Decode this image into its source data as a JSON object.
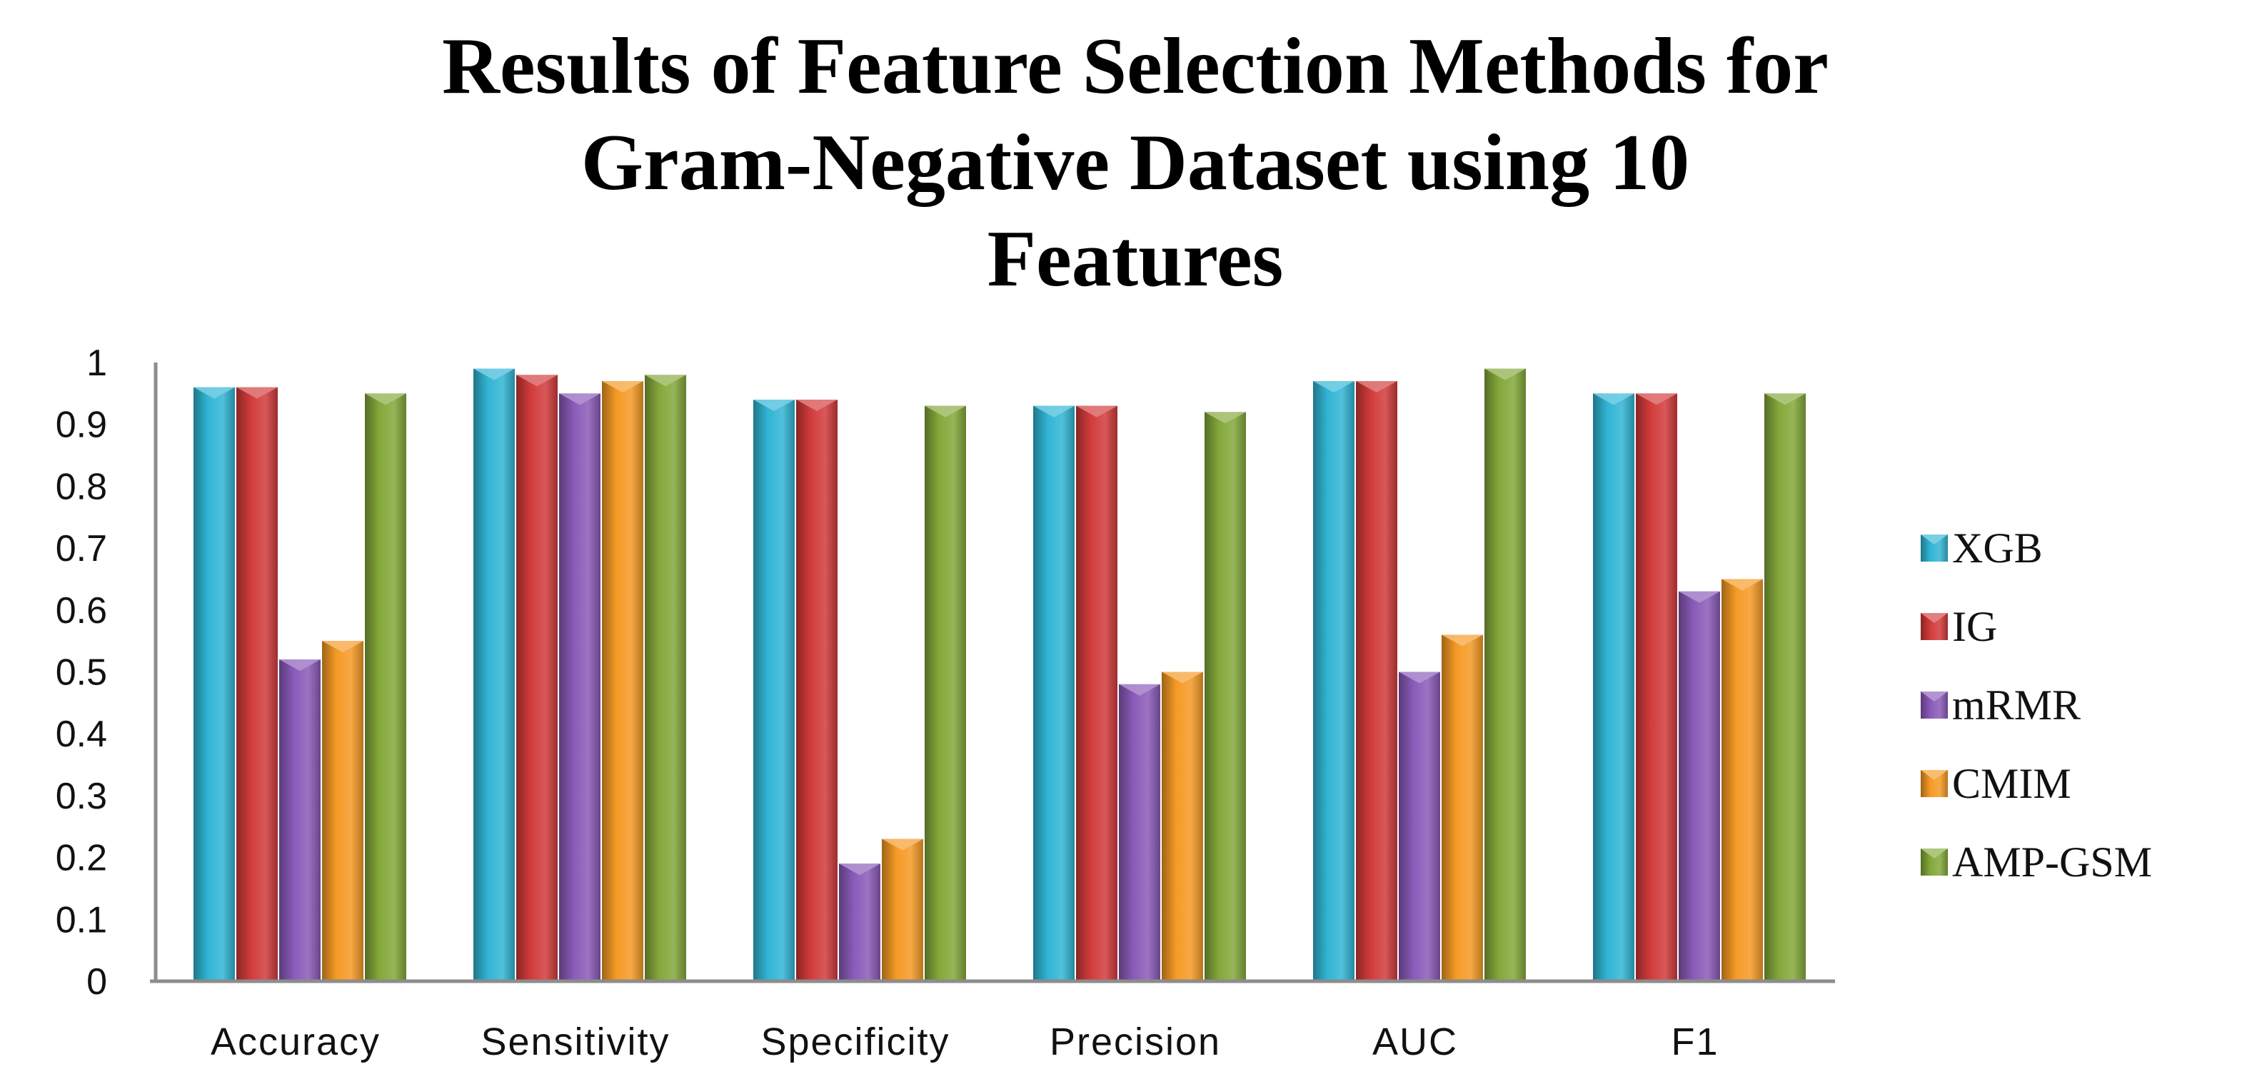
{
  "chart_data": {
    "type": "bar",
    "title_lines": [
      "Results of Feature Selection Methods for",
      "Gram-Negative Dataset using 10",
      "Features"
    ],
    "categories": [
      "Accuracy",
      "Sensitivity",
      "Specificity",
      "Precision",
      "AUC",
      "F1"
    ],
    "series": [
      {
        "name": "XGB",
        "color": "#31b5d5",
        "values": [
          0.96,
          0.99,
          0.94,
          0.93,
          0.97,
          0.95
        ]
      },
      {
        "name": "IG",
        "color": "#d23b3b",
        "values": [
          0.96,
          0.98,
          0.94,
          0.93,
          0.97,
          0.95
        ]
      },
      {
        "name": "mRMR",
        "color": "#8a5ab8",
        "values": [
          0.52,
          0.95,
          0.19,
          0.48,
          0.5,
          0.63
        ]
      },
      {
        "name": "CMIM",
        "color": "#f59a25",
        "values": [
          0.55,
          0.97,
          0.23,
          0.5,
          0.56,
          0.65
        ]
      },
      {
        "name": "AMP-GSM",
        "color": "#84a83a",
        "values": [
          0.95,
          0.98,
          0.93,
          0.92,
          0.99,
          0.95
        ]
      }
    ],
    "y_ticks": [
      "0",
      "0.1",
      "0.2",
      "0.3",
      "0.4",
      "0.5",
      "0.6",
      "0.7",
      "0.8",
      "0.9",
      "1"
    ],
    "ylim": [
      0,
      1
    ],
    "xlabel": "",
    "ylabel": "",
    "grid": false,
    "legend_position": "right"
  }
}
